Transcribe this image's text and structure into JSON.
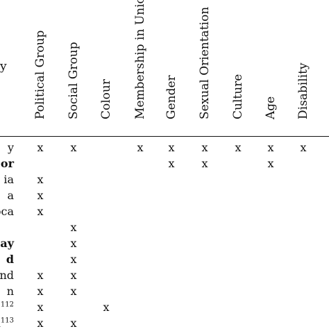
{
  "columns": [
    {
      "id": "political-group",
      "label": "Political Group"
    },
    {
      "id": "social-group",
      "label": "Social Group"
    },
    {
      "id": "colour",
      "label": "Colour"
    },
    {
      "id": "membership-in-union",
      "label": "Membership in Union"
    },
    {
      "id": "gender",
      "label": "Gender"
    },
    {
      "id": "sexual-orientation",
      "label": "Sexual Orientation"
    },
    {
      "id": "culture",
      "label": "Culture"
    },
    {
      "id": "age",
      "label": "Age"
    },
    {
      "id": "disability",
      "label": "Disability"
    }
  ],
  "stub_header": "y",
  "mark": "x",
  "rows": [
    {
      "label": "y",
      "sup": "",
      "bold": false,
      "marks": [
        1,
        1,
        0,
        1,
        1,
        1,
        1,
        1,
        1
      ]
    },
    {
      "label": "or",
      "sup": "",
      "bold": true,
      "marks": [
        0,
        0,
        0,
        0,
        1,
        1,
        0,
        1,
        0
      ]
    },
    {
      "label": "ia",
      "sup": "",
      "bold": false,
      "marks": [
        1,
        0,
        0,
        0,
        0,
        0,
        0,
        0,
        0
      ]
    },
    {
      "label": "a",
      "sup": "",
      "bold": false,
      "marks": [
        1,
        0,
        0,
        0,
        0,
        0,
        0,
        0,
        0
      ]
    },
    {
      "label": "oca",
      "sup": "",
      "bold": false,
      "marks": [
        1,
        0,
        0,
        0,
        0,
        0,
        0,
        0,
        0
      ]
    },
    {
      "label": "",
      "sup": "",
      "bold": false,
      "marks": [
        0,
        1,
        0,
        0,
        0,
        0,
        0,
        0,
        0
      ]
    },
    {
      "label": "ay",
      "sup": "",
      "bold": true,
      "marks": [
        0,
        1,
        0,
        0,
        0,
        0,
        0,
        0,
        0
      ]
    },
    {
      "label": "d",
      "sup": "",
      "bold": true,
      "marks": [
        0,
        1,
        0,
        0,
        0,
        0,
        0,
        0,
        0
      ]
    },
    {
      "label": "and",
      "sup": "",
      "bold": false,
      "marks": [
        1,
        1,
        0,
        0,
        0,
        0,
        0,
        0,
        0
      ]
    },
    {
      "label": "n",
      "sup": "",
      "bold": false,
      "marks": [
        1,
        1,
        0,
        0,
        0,
        0,
        0,
        0,
        0
      ]
    },
    {
      "label": "",
      "sup": "112",
      "bold": false,
      "marks": [
        1,
        0,
        1,
        0,
        0,
        0,
        0,
        0,
        0
      ]
    },
    {
      "label": "a",
      "sup": "113",
      "bold": false,
      "marks": [
        1,
        1,
        0,
        0,
        0,
        0,
        0,
        0,
        0
      ]
    }
  ]
}
